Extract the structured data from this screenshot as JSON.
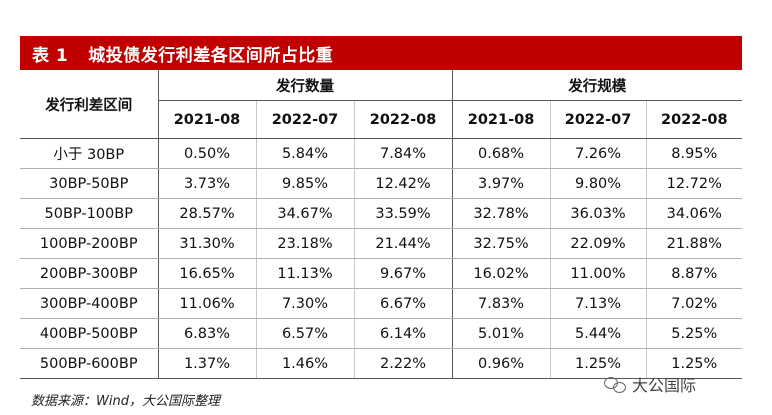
{
  "table": {
    "number": "表 1",
    "title": "城投债发行利差各区间所占比重",
    "row_header": "发行利差区间",
    "groups": [
      "发行数量",
      "发行规模"
    ],
    "years": [
      "2021-08",
      "2022-07",
      "2022-08",
      "2021-08",
      "2022-07",
      "2022-08"
    ],
    "rows": [
      {
        "label": "小于 30BP",
        "values": [
          "0.50%",
          "5.84%",
          "7.84%",
          "0.68%",
          "7.26%",
          "8.95%"
        ]
      },
      {
        "label": "30BP-50BP",
        "values": [
          "3.73%",
          "9.85%",
          "12.42%",
          "3.97%",
          "9.80%",
          "12.72%"
        ]
      },
      {
        "label": "50BP-100BP",
        "values": [
          "28.57%",
          "34.67%",
          "33.59%",
          "32.78%",
          "36.03%",
          "34.06%"
        ]
      },
      {
        "label": "100BP-200BP",
        "values": [
          "31.30%",
          "23.18%",
          "21.44%",
          "32.75%",
          "22.09%",
          "21.88%"
        ]
      },
      {
        "label": "200BP-300BP",
        "values": [
          "16.65%",
          "11.13%",
          "9.67%",
          "16.02%",
          "11.00%",
          "8.87%"
        ]
      },
      {
        "label": "300BP-400BP",
        "values": [
          "11.06%",
          "7.30%",
          "6.67%",
          "7.83%",
          "7.13%",
          "7.02%"
        ]
      },
      {
        "label": "400BP-500BP",
        "values": [
          "6.83%",
          "6.57%",
          "6.14%",
          "5.01%",
          "5.44%",
          "5.25%"
        ]
      },
      {
        "label": "500BP-600BP",
        "values": [
          "1.37%",
          "1.46%",
          "2.22%",
          "0.96%",
          "1.25%",
          "1.25%"
        ]
      }
    ]
  },
  "footer": {
    "source": "数据来源：Wind，大公国际整理"
  },
  "watermark": {
    "icon": "wechat-icon",
    "text": "大公国际"
  }
}
